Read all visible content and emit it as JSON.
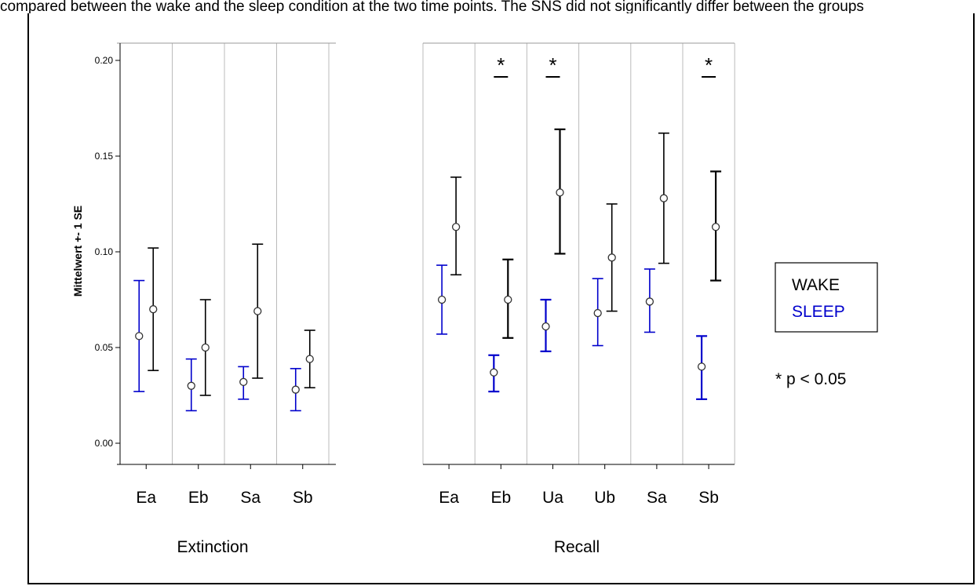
{
  "caption_fragment": "compared between the wake and the sleep condition at the two time points. The SNS did not significantly differ between the groups",
  "chart_data": [
    {
      "type": "errorbar",
      "panel": "left",
      "group_label": "Extinction",
      "ylabel": "Mittelwert +- 1 SE",
      "ylim": [
        0.0,
        0.2
      ],
      "yticks": [
        "0.00",
        "0.05",
        "0.10",
        "0.15",
        "0.20"
      ],
      "categories": [
        "Ea",
        "Eb",
        "Sa",
        "Sb"
      ],
      "series": [
        {
          "name": "SLEEP",
          "color": "#0000cc",
          "mean": [
            0.056,
            0.03,
            0.032,
            0.028
          ],
          "lower": [
            0.027,
            0.017,
            0.023,
            0.017
          ],
          "upper": [
            0.085,
            0.044,
            0.04,
            0.039
          ]
        },
        {
          "name": "WAKE",
          "color": "#000000",
          "mean": [
            0.07,
            0.05,
            0.069,
            0.044
          ],
          "lower": [
            0.038,
            0.025,
            0.034,
            0.029
          ],
          "upper": [
            0.102,
            0.075,
            0.104,
            0.059
          ]
        }
      ],
      "significance": []
    },
    {
      "type": "errorbar",
      "panel": "right",
      "group_label": "Recall",
      "ylim": [
        0.0,
        0.2
      ],
      "categories": [
        "Ea",
        "Eb",
        "Ua",
        "Ub",
        "Sa",
        "Sb"
      ],
      "series": [
        {
          "name": "SLEEP",
          "color": "#0000cc",
          "mean": [
            0.075,
            0.037,
            0.061,
            0.068,
            0.074,
            0.04
          ],
          "lower": [
            0.057,
            0.027,
            0.048,
            0.051,
            0.058,
            0.023
          ],
          "upper": [
            0.093,
            0.046,
            0.075,
            0.086,
            0.091,
            0.056
          ]
        },
        {
          "name": "WAKE",
          "color": "#000000",
          "mean": [
            0.113,
            0.075,
            0.131,
            0.097,
            0.128,
            0.113
          ],
          "lower": [
            0.088,
            0.055,
            0.099,
            0.069,
            0.094,
            0.085
          ],
          "upper": [
            0.139,
            0.096,
            0.164,
            0.125,
            0.162,
            0.142
          ]
        }
      ],
      "significance": [
        false,
        true,
        true,
        false,
        false,
        true
      ]
    }
  ],
  "significance_mark": "*",
  "legend": {
    "items": [
      {
        "label": "WAKE",
        "color": "#000000"
      },
      {
        "label": "SLEEP",
        "color": "#0000cc"
      }
    ],
    "placement": "right"
  },
  "annotation": "* p < 0.05"
}
